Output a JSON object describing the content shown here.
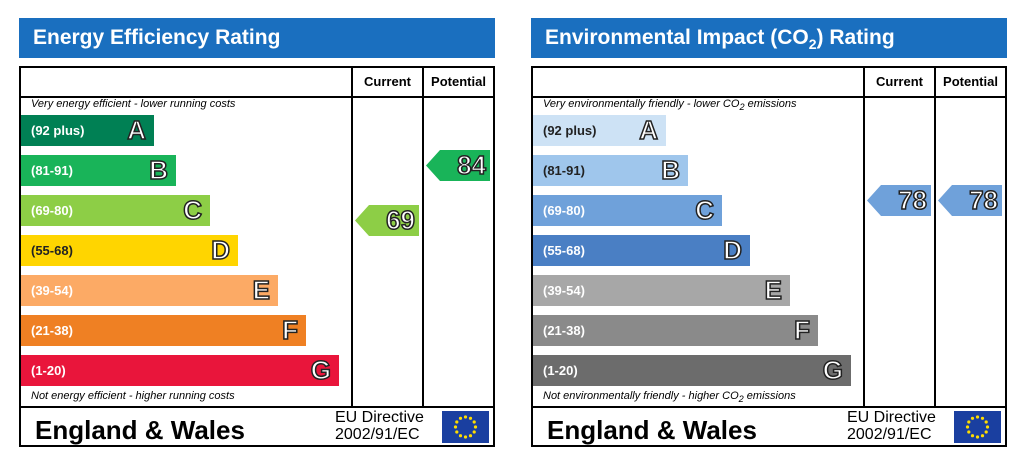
{
  "chart_data": [
    {
      "type": "table",
      "title": "Energy Efficiency Rating",
      "columns": [
        "Current",
        "Potential"
      ],
      "top_note": "Very energy efficient - lower running costs",
      "bottom_note": "Not energy efficient - higher running costs",
      "bands": [
        {
          "letter": "A",
          "range": "(92 plus)",
          "color": "#008054"
        },
        {
          "letter": "B",
          "range": "(81-91)",
          "color": "#19b459"
        },
        {
          "letter": "C",
          "range": "(69-80)",
          "color": "#8dce46"
        },
        {
          "letter": "D",
          "range": "(55-68)",
          "color": "#ffd500"
        },
        {
          "letter": "E",
          "range": "(39-54)",
          "color": "#fcaa65"
        },
        {
          "letter": "F",
          "range": "(21-38)",
          "color": "#ef8023"
        },
        {
          "letter": "G",
          "range": "(1-20)",
          "color": "#e9153b"
        }
      ],
      "current": {
        "value": "69",
        "band": "C",
        "color": "#8dce46"
      },
      "potential": {
        "value": "84",
        "band": "B",
        "color": "#19b459"
      },
      "footer": {
        "region": "England & Wales",
        "directive_line1": "EU Directive",
        "directive_line2": "2002/91/EC"
      }
    },
    {
      "type": "table",
      "title": "Environmental Impact (CO",
      "title_sub": "2",
      "title_end": ") Rating",
      "columns": [
        "Current",
        "Potential"
      ],
      "top_note": "Very environmentally friendly - lower CO",
      "top_note_sub": "2",
      "top_note_end": " emissions",
      "bottom_note": "Not environmentally friendly - higher CO",
      "bottom_note_sub": "2",
      "bottom_note_end": " emissions",
      "bands": [
        {
          "letter": "A",
          "range": "(92 plus)",
          "color": "#cde2f5"
        },
        {
          "letter": "B",
          "range": "(81-91)",
          "color": "#9fc6ec"
        },
        {
          "letter": "C",
          "range": "(69-80)",
          "color": "#6fa1da"
        },
        {
          "letter": "D",
          "range": "(55-68)",
          "color": "#4a7fc4"
        },
        {
          "letter": "E",
          "range": "(39-54)",
          "color": "#a7a7a7"
        },
        {
          "letter": "F",
          "range": "(21-38)",
          "color": "#8a8a8a"
        },
        {
          "letter": "G",
          "range": "(1-20)",
          "color": "#6c6c6c"
        }
      ],
      "current": {
        "value": "78",
        "band": "C",
        "color": "#6fa1da"
      },
      "potential": {
        "value": "78",
        "band": "C",
        "color": "#6fa1da"
      },
      "footer": {
        "region": "England & Wales",
        "directive_line1": "EU Directive",
        "directive_line2": "2002/91/EC"
      }
    }
  ]
}
